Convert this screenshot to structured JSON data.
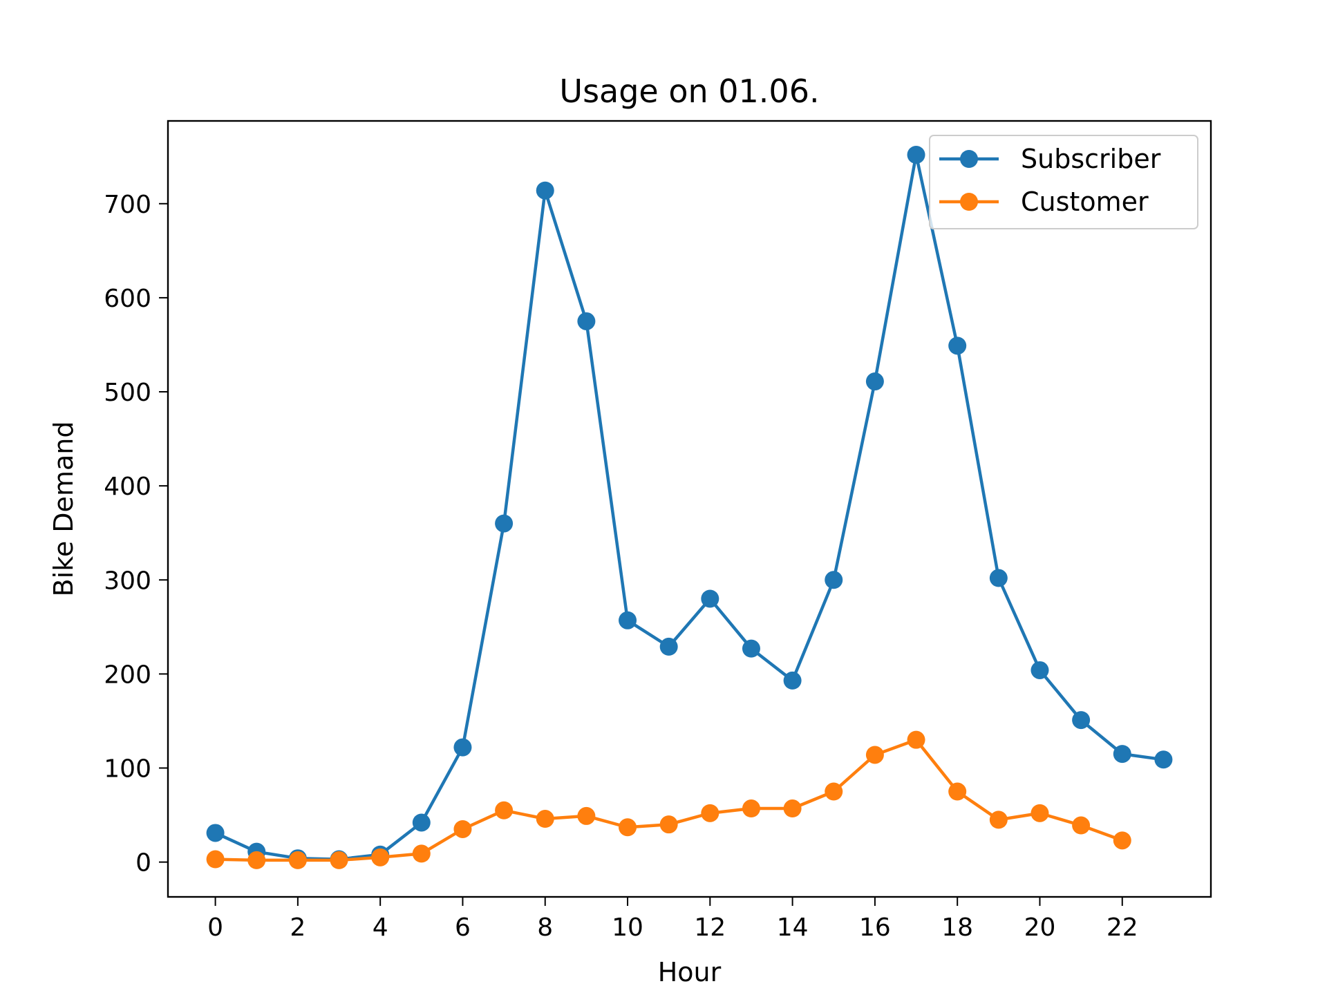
{
  "chart_data": {
    "type": "line",
    "title": "Usage on 01.06.",
    "xlabel": "Hour",
    "ylabel": "Bike Demand",
    "xlim": [
      -1.15,
      24.15
    ],
    "ylim": [
      -37,
      788
    ],
    "xticks": [
      0,
      2,
      4,
      6,
      8,
      10,
      12,
      14,
      16,
      18,
      20,
      22
    ],
    "yticks": [
      0,
      100,
      200,
      300,
      400,
      500,
      600,
      700
    ],
    "grid": false,
    "legend_position": "top-right",
    "series": [
      {
        "name": "Subscriber",
        "color": "#1f77b4",
        "x": [
          0,
          1,
          2,
          3,
          4,
          5,
          6,
          7,
          8,
          9,
          10,
          11,
          12,
          13,
          14,
          15,
          16,
          17,
          18,
          19,
          20,
          21,
          22,
          23
        ],
        "values": [
          31,
          11,
          4,
          3,
          8,
          42,
          122,
          360,
          714,
          575,
          257,
          229,
          280,
          227,
          193,
          300,
          511,
          752,
          549,
          302,
          204,
          151,
          115,
          109
        ]
      },
      {
        "name": "Customer",
        "color": "#ff7f0e",
        "x": [
          0,
          1,
          2,
          3,
          4,
          5,
          6,
          7,
          8,
          9,
          10,
          11,
          12,
          13,
          14,
          15,
          16,
          17,
          18,
          19,
          20,
          21,
          22
        ],
        "values": [
          3,
          2,
          2,
          2,
          5,
          9,
          35,
          55,
          46,
          49,
          37,
          40,
          52,
          57,
          57,
          75,
          114,
          130,
          75,
          45,
          52,
          39,
          23
        ]
      }
    ]
  }
}
